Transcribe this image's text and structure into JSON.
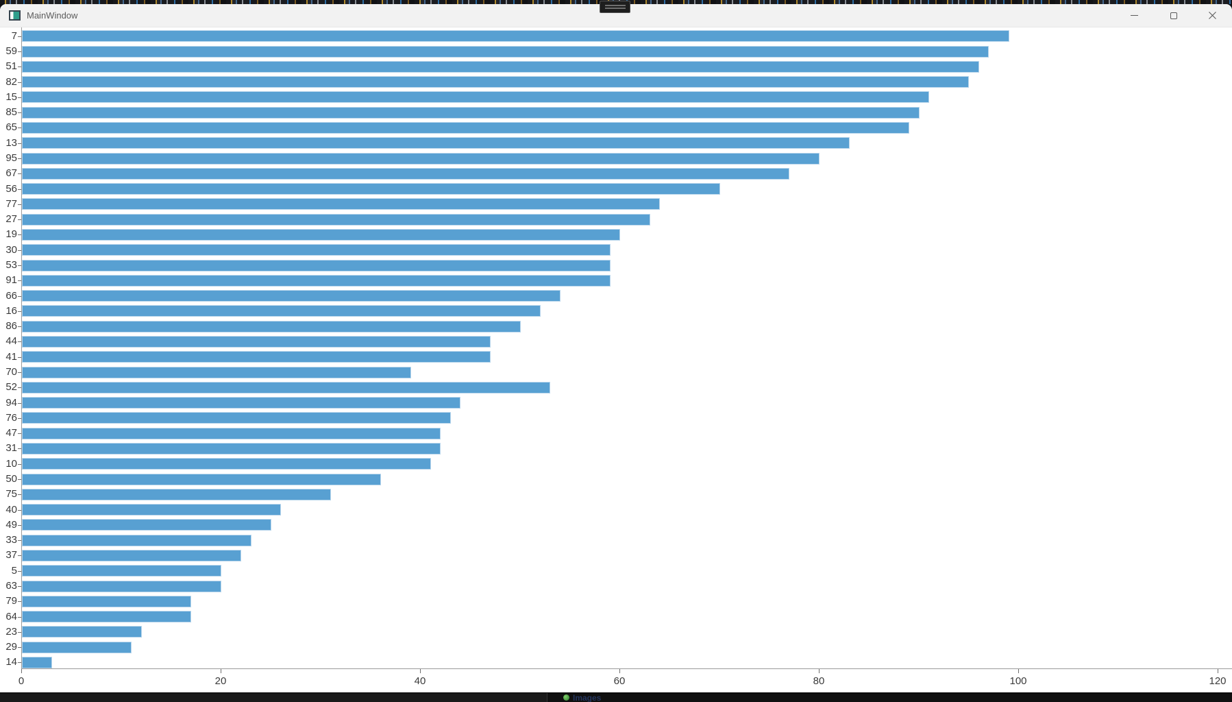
{
  "window": {
    "title": "MainWindow"
  },
  "taskbar_fragment": {
    "item_label": "Images"
  },
  "chart_data": {
    "type": "bar",
    "orientation": "horizontal",
    "title": "",
    "xlabel": "",
    "ylabel": "",
    "categories": [
      "7",
      "59",
      "51",
      "82",
      "15",
      "85",
      "65",
      "13",
      "95",
      "67",
      "56",
      "77",
      "27",
      "19",
      "30",
      "53",
      "91",
      "66",
      "16",
      "86",
      "44",
      "41",
      "70",
      "52",
      "94",
      "76",
      "47",
      "31",
      "10",
      "50",
      "75",
      "40",
      "49",
      "33",
      "37",
      "5",
      "63",
      "79",
      "64",
      "23",
      "29",
      "14"
    ],
    "values": [
      99,
      97,
      96,
      95,
      91,
      90,
      89,
      83,
      80,
      77,
      70,
      64,
      63,
      60,
      59,
      59,
      59,
      54,
      52,
      50,
      47,
      47,
      39,
      53,
      44,
      43,
      42,
      42,
      41,
      36,
      31,
      26,
      25,
      23,
      22,
      20,
      20,
      17,
      17,
      12,
      11,
      3
    ],
    "xlim": [
      0,
      120
    ],
    "x_ticks": [
      0,
      20,
      40,
      60,
      80,
      100,
      120
    ],
    "grid": false,
    "legend_position": "none",
    "bar_color": "#58a0d2",
    "bar_edge_color": "#b9d6ec",
    "axis_color": "#9b9b9b",
    "tick_color": "#6e6e6e",
    "label_color": "#3a3a3a"
  }
}
